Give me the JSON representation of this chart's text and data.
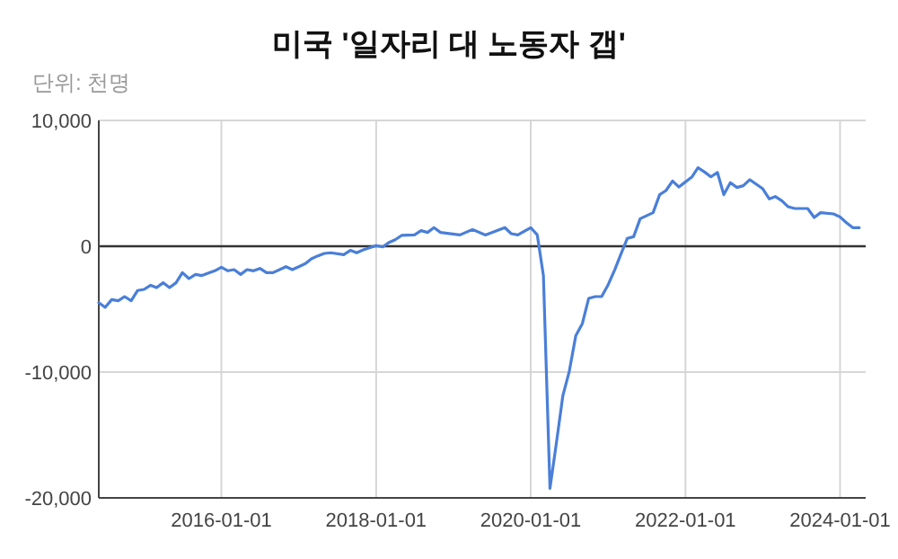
{
  "chart_data": {
    "type": "line",
    "title": "미국 '일자리 대 노동자 갭'",
    "subtitle": "단위: 천명",
    "x": [
      "2014-06",
      "2014-07",
      "2014-08",
      "2014-09",
      "2014-10",
      "2014-11",
      "2014-12",
      "2015-01",
      "2015-02",
      "2015-03",
      "2015-04",
      "2015-05",
      "2015-06",
      "2015-07",
      "2015-08",
      "2015-09",
      "2015-10",
      "2015-12",
      "2016-01",
      "2016-02",
      "2016-03",
      "2016-04",
      "2016-05",
      "2016-06",
      "2016-07",
      "2016-08",
      "2016-09",
      "2016-11",
      "2016-12",
      "2017-01",
      "2017-02",
      "2017-03",
      "2017-04",
      "2017-05",
      "2017-06",
      "2017-08",
      "2017-09",
      "2017-10",
      "2017-11",
      "2018-01",
      "2018-02",
      "2018-03",
      "2018-04",
      "2018-05",
      "2018-07",
      "2018-08",
      "2018-09",
      "2018-10",
      "2018-11",
      "2019-02",
      "2019-04",
      "2019-06",
      "2019-09",
      "2019-10",
      "2019-11",
      "2020-01",
      "2020-02",
      "2020-03",
      "2020-04",
      "2020-05",
      "2020-06",
      "2020-07",
      "2020-08",
      "2020-09",
      "2020-10",
      "2020-11",
      "2020-12",
      "2021-01",
      "2021-02",
      "2021-03",
      "2021-04",
      "2021-05",
      "2021-06",
      "2021-08",
      "2021-09",
      "2021-10",
      "2021-11",
      "2021-12",
      "2022-02",
      "2022-03",
      "2022-04",
      "2022-05",
      "2022-06",
      "2022-07",
      "2022-08",
      "2022-09",
      "2022-10",
      "2022-11",
      "2023-01",
      "2023-02",
      "2023-03",
      "2023-04",
      "2023-05",
      "2023-06",
      "2023-08",
      "2023-09",
      "2023-10",
      "2023-12",
      "2024-01",
      "2024-02",
      "2024-03",
      "2024-04"
    ],
    "series": [
      {
        "color": "#4a7fd8",
        "values": [
          -4480,
          -4860,
          -4240,
          -4330,
          -4000,
          -4330,
          -3520,
          -3430,
          -3100,
          -3290,
          -2900,
          -3290,
          -2900,
          -2100,
          -2570,
          -2240,
          -2330,
          -1950,
          -1670,
          -1950,
          -1860,
          -2240,
          -1860,
          -1950,
          -1760,
          -2100,
          -2100,
          -1620,
          -1860,
          -1620,
          -1380,
          -1000,
          -760,
          -570,
          -520,
          -670,
          -330,
          -520,
          -290,
          50,
          -50,
          290,
          520,
          860,
          900,
          1240,
          1100,
          1480,
          1100,
          900,
          1330,
          900,
          1480,
          1000,
          900,
          1480,
          900,
          -2330,
          -19240,
          -15670,
          -11860,
          -9950,
          -7100,
          -6140,
          -4140,
          -4000,
          -4000,
          -3050,
          -1860,
          -670,
          620,
          760,
          2190,
          2670,
          4100,
          4430,
          5190,
          4710,
          5520,
          6240,
          5900,
          5520,
          5860,
          4100,
          5050,
          4670,
          4810,
          5290,
          4570,
          3760,
          3950,
          3620,
          3140,
          3000,
          3000,
          2290,
          2670,
          2570,
          2330,
          1860,
          1480,
          1480
        ]
      }
    ],
    "xlim": [
      "2014-06",
      "2024-05"
    ],
    "xticks": [
      "2016-01-01",
      "2018-01-01",
      "2020-01-01",
      "2022-01-01",
      "2024-01-01"
    ],
    "ylim": [
      -20000,
      10000
    ],
    "yticks": [
      {
        "value": -20000,
        "label": "-20,000"
      },
      {
        "value": -10000,
        "label": "-10,000"
      },
      0,
      {
        "value": 10000,
        "label": "10,000"
      }
    ],
    "ref_lines": [
      {
        "axis": "y",
        "value": 0,
        "color": "#333333"
      }
    ],
    "grid": true,
    "marker": "none",
    "line_style": "solid"
  }
}
